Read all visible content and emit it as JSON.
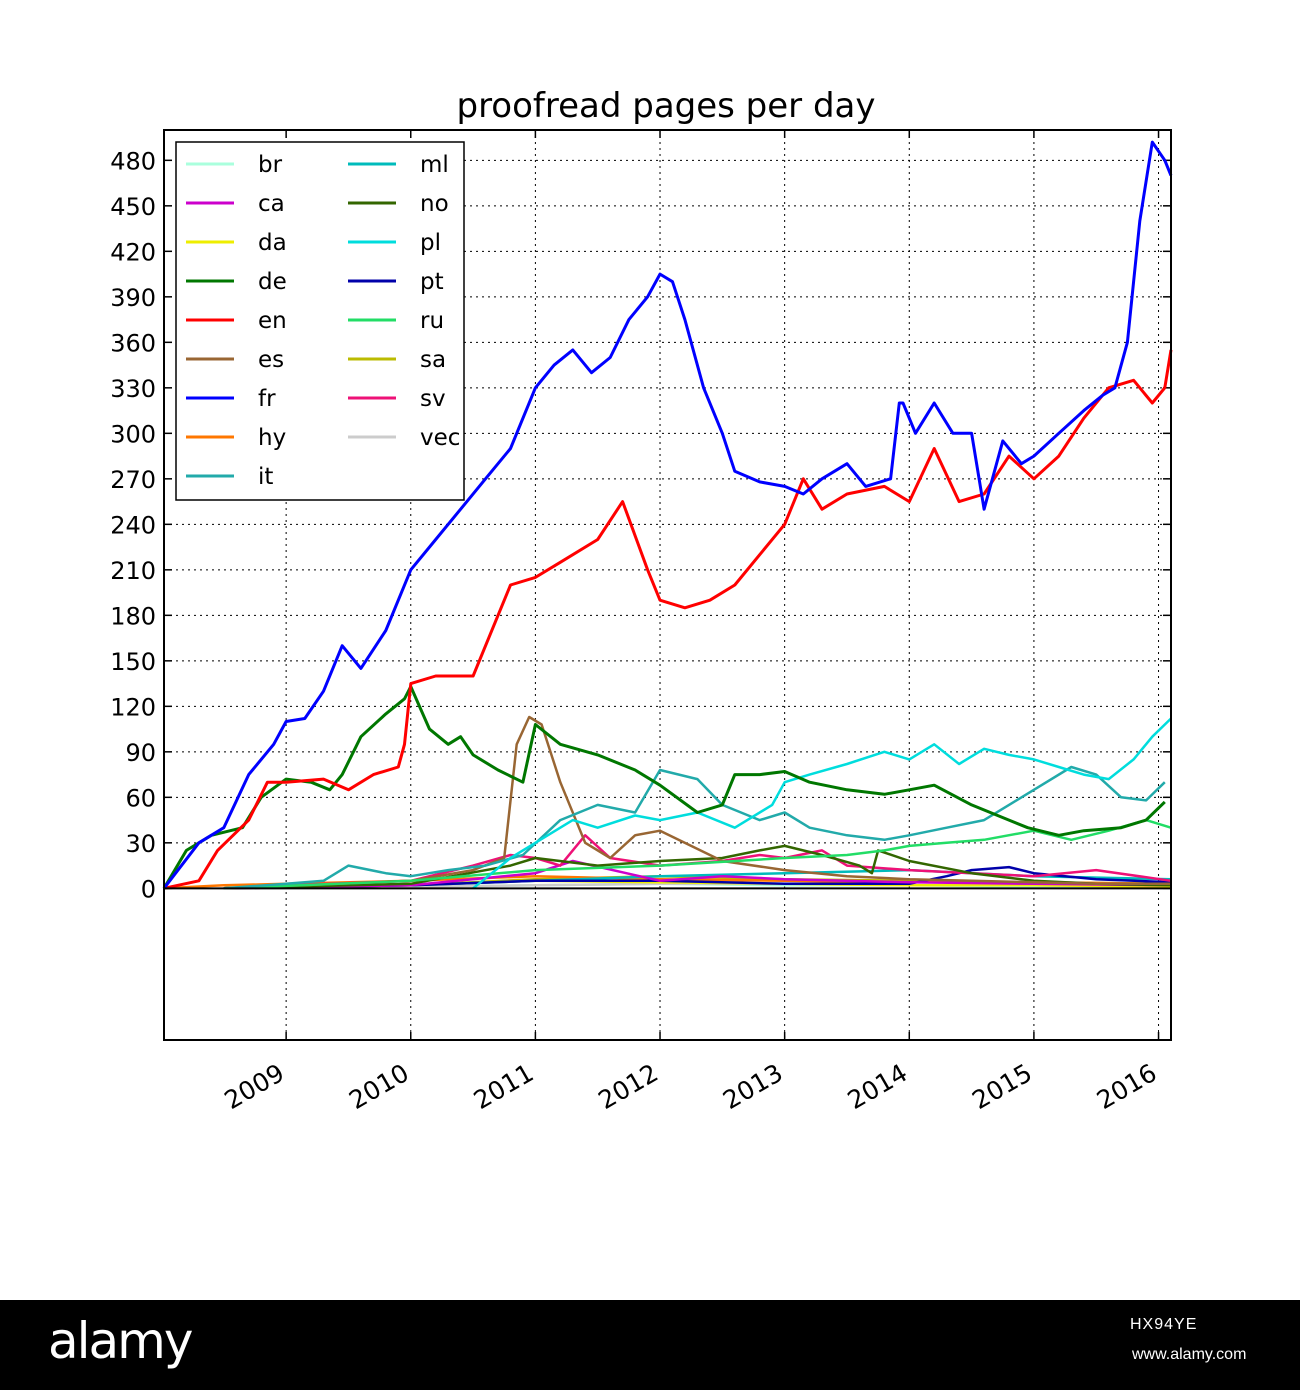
{
  "chart_data": {
    "type": "line",
    "title": "proofread pages per day",
    "xlabel": "",
    "ylabel": "",
    "xlim": [
      2008.02,
      2016.1
    ],
    "ylim": [
      -100,
      500
    ],
    "grid": true,
    "legend_position": "top-left",
    "y_ticks": [
      0,
      30,
      60,
      90,
      120,
      150,
      180,
      210,
      240,
      270,
      300,
      330,
      360,
      390,
      420,
      450,
      480
    ],
    "x_ticks": [
      2009,
      2010,
      2011,
      2012,
      2013,
      2014,
      2015,
      2016
    ],
    "x_tick_labels": [
      "2009",
      "2010",
      "2011",
      "2012",
      "2013",
      "2014",
      "2015",
      "2016"
    ],
    "series": [
      {
        "name": "br",
        "color": "#aaffdd",
        "x": [
          2008.5,
          2010.0,
          2011.0,
          2012.0,
          2013.0,
          2014.0,
          2015.0,
          2016.1
        ],
        "y": [
          0,
          1,
          2,
          3,
          2,
          2,
          1,
          1
        ]
      },
      {
        "name": "ca",
        "color": "#cc00cc",
        "x": [
          2008.5,
          2010.0,
          2011.0,
          2011.3,
          2012.0,
          2012.5,
          2013.0,
          2014.0,
          2015.0,
          2016.1
        ],
        "y": [
          0,
          2,
          10,
          18,
          5,
          8,
          6,
          4,
          3,
          2
        ]
      },
      {
        "name": "da",
        "color": "#eeee00",
        "x": [
          2008.5,
          2010.0,
          2011.0,
          2012.0,
          2013.0,
          2014.0,
          2015.0,
          2016.1
        ],
        "y": [
          0,
          2,
          5,
          4,
          3,
          2,
          2,
          1
        ]
      },
      {
        "name": "de",
        "color": "#007700",
        "x": [
          2008.02,
          2008.2,
          2008.4,
          2008.65,
          2008.8,
          2009.0,
          2009.2,
          2009.35,
          2009.45,
          2009.6,
          2009.8,
          2009.95,
          2010.0,
          2010.15,
          2010.3,
          2010.4,
          2010.5,
          2010.7,
          2010.9,
          2011.0,
          2011.2,
          2011.5,
          2011.8,
          2012.0,
          2012.3,
          2012.5,
          2012.6,
          2012.8,
          2013.0,
          2013.2,
          2013.5,
          2013.8,
          2014.0,
          2014.2,
          2014.5,
          2014.8,
          2014.95,
          2015.2,
          2015.4,
          2015.7,
          2015.9,
          2016.05
        ],
        "y": [
          0,
          25,
          35,
          40,
          60,
          72,
          70,
          65,
          75,
          100,
          115,
          125,
          133,
          105,
          95,
          100,
          88,
          78,
          70,
          108,
          95,
          88,
          78,
          68,
          50,
          55,
          75,
          75,
          77,
          70,
          65,
          62,
          65,
          68,
          55,
          45,
          40,
          35,
          38,
          40,
          45,
          57
        ]
      },
      {
        "name": "en",
        "color": "#ff0000",
        "x": [
          2008.02,
          2008.3,
          2008.45,
          2008.7,
          2008.85,
          2009.0,
          2009.3,
          2009.5,
          2009.7,
          2009.9,
          2009.95,
          2010.0,
          2010.2,
          2010.5,
          2010.8,
          2011.0,
          2011.2,
          2011.5,
          2011.7,
          2011.9,
          2012.0,
          2012.2,
          2012.4,
          2012.6,
          2012.8,
          2013.0,
          2013.15,
          2013.3,
          2013.5,
          2013.8,
          2014.0,
          2014.2,
          2014.4,
          2014.6,
          2014.8,
          2015.0,
          2015.2,
          2015.4,
          2015.6,
          2015.8,
          2015.95,
          2016.05,
          2016.1
        ],
        "y": [
          0,
          5,
          25,
          45,
          70,
          70,
          72,
          65,
          75,
          80,
          95,
          135,
          140,
          140,
          200,
          205,
          215,
          230,
          255,
          210,
          190,
          185,
          190,
          200,
          220,
          240,
          270,
          250,
          260,
          265,
          255,
          290,
          255,
          260,
          285,
          270,
          285,
          310,
          330,
          335,
          320,
          330,
          355
        ]
      },
      {
        "name": "es",
        "color": "#996633",
        "x": [
          2008.5,
          2010.0,
          2010.5,
          2010.75,
          2010.85,
          2010.95,
          2011.05,
          2011.2,
          2011.4,
          2011.6,
          2011.8,
          2012.0,
          2012.5,
          2013.0,
          2013.5,
          2014.0,
          2014.5,
          2015.0,
          2015.5,
          2016.1
        ],
        "y": [
          0,
          5,
          12,
          20,
          95,
          113,
          108,
          70,
          30,
          20,
          35,
          38,
          18,
          12,
          8,
          6,
          5,
          4,
          3,
          3
        ]
      },
      {
        "name": "fr",
        "color": "#0000ff",
        "x": [
          2008.02,
          2008.3,
          2008.5,
          2008.7,
          2008.9,
          2009.0,
          2009.15,
          2009.3,
          2009.45,
          2009.6,
          2009.8,
          2010.0,
          2010.2,
          2010.4,
          2010.6,
          2010.8,
          2011.0,
          2011.15,
          2011.3,
          2011.45,
          2011.6,
          2011.75,
          2011.9,
          2012.0,
          2012.1,
          2012.2,
          2012.35,
          2012.5,
          2012.6,
          2012.8,
          2013.0,
          2013.15,
          2013.3,
          2013.5,
          2013.65,
          2013.85,
          2013.92,
          2013.95,
          2014.05,
          2014.2,
          2014.35,
          2014.5,
          2014.6,
          2014.75,
          2014.9,
          2015.0,
          2015.2,
          2015.4,
          2015.55,
          2015.65,
          2015.75,
          2015.85,
          2015.95,
          2016.05,
          2016.1
        ],
        "y": [
          0,
          30,
          40,
          75,
          95,
          110,
          112,
          130,
          160,
          145,
          170,
          210,
          230,
          250,
          270,
          290,
          330,
          345,
          355,
          340,
          350,
          375,
          390,
          405,
          400,
          375,
          330,
          300,
          275,
          268,
          265,
          260,
          270,
          280,
          265,
          270,
          320,
          320,
          300,
          320,
          300,
          300,
          250,
          295,
          280,
          285,
          300,
          315,
          325,
          330,
          360,
          440,
          492,
          480,
          470
        ]
      },
      {
        "name": "hy",
        "color": "#ff7700",
        "x": [
          2008.02,
          2008.5,
          2009.0,
          2010.0,
          2011.0,
          2012.0,
          2013.0,
          2014.0,
          2015.0,
          2016.1
        ],
        "y": [
          0,
          2,
          3,
          5,
          8,
          6,
          5,
          4,
          4,
          3
        ]
      },
      {
        "name": "it",
        "color": "#22aaaa",
        "x": [
          2008.5,
          2009.0,
          2009.3,
          2009.5,
          2009.8,
          2010.0,
          2010.3,
          2010.6,
          2010.9,
          2011.2,
          2011.5,
          2011.8,
          2012.0,
          2012.3,
          2012.5,
          2012.8,
          2013.0,
          2013.2,
          2013.5,
          2013.8,
          2014.0,
          2014.3,
          2014.6,
          2014.8,
          2015.0,
          2015.3,
          2015.5,
          2015.7,
          2015.9,
          2016.05
        ],
        "y": [
          0,
          3,
          5,
          15,
          10,
          8,
          12,
          15,
          22,
          45,
          55,
          50,
          78,
          72,
          55,
          45,
          50,
          40,
          35,
          32,
          35,
          40,
          45,
          55,
          65,
          80,
          75,
          60,
          58,
          70
        ]
      },
      {
        "name": "ml",
        "color": "#00bbbb",
        "x": [
          2008.5,
          2010.0,
          2011.0,
          2012.0,
          2013.0,
          2014.0,
          2015.0,
          2016.1
        ],
        "y": [
          0,
          2,
          5,
          8,
          10,
          12,
          8,
          6
        ]
      },
      {
        "name": "no",
        "color": "#336600",
        "x": [
          2008.5,
          2010.0,
          2010.8,
          2011.0,
          2011.5,
          2012.0,
          2012.5,
          2012.8,
          2013.0,
          2013.3,
          2013.6,
          2013.7,
          2013.75,
          2014.0,
          2014.5,
          2015.0,
          2015.5,
          2016.1
        ],
        "y": [
          0,
          3,
          15,
          20,
          15,
          18,
          20,
          25,
          28,
          22,
          15,
          10,
          25,
          18,
          10,
          5,
          3,
          2
        ]
      },
      {
        "name": "pl",
        "color": "#00dddd",
        "x": [
          2010.5,
          2010.8,
          2011.0,
          2011.3,
          2011.5,
          2011.8,
          2012.0,
          2012.3,
          2012.6,
          2012.9,
          2013.0,
          2013.2,
          2013.5,
          2013.8,
          2014.0,
          2014.2,
          2014.4,
          2014.6,
          2014.8,
          2015.0,
          2015.2,
          2015.4,
          2015.6,
          2015.8,
          2015.95,
          2016.1
        ],
        "y": [
          0,
          20,
          30,
          45,
          40,
          48,
          45,
          50,
          40,
          55,
          70,
          75,
          82,
          90,
          85,
          95,
          82,
          92,
          88,
          85,
          80,
          75,
          72,
          85,
          100,
          112
        ]
      },
      {
        "name": "pt",
        "color": "#0000aa",
        "x": [
          2008.5,
          2010.0,
          2011.0,
          2012.0,
          2013.0,
          2014.0,
          2014.3,
          2014.5,
          2014.8,
          2015.0,
          2015.5,
          2016.1
        ],
        "y": [
          0,
          2,
          5,
          5,
          3,
          3,
          8,
          12,
          14,
          10,
          6,
          4
        ]
      },
      {
        "name": "ru",
        "color": "#22dd66",
        "x": [
          2008.5,
          2010.0,
          2011.0,
          2012.0,
          2013.0,
          2013.5,
          2013.8,
          2014.0,
          2014.3,
          2014.6,
          2015.0,
          2015.3,
          2015.6,
          2015.9,
          2016.1
        ],
        "y": [
          0,
          5,
          12,
          15,
          20,
          22,
          25,
          28,
          30,
          32,
          38,
          32,
          38,
          45,
          40
        ]
      },
      {
        "name": "sa",
        "color": "#bbbb00",
        "x": [
          2008.5,
          2010.0,
          2011.0,
          2012.0,
          2013.0,
          2014.0,
          2015.0,
          2016.1
        ],
        "y": [
          0,
          2,
          6,
          8,
          6,
          5,
          4,
          3
        ]
      },
      {
        "name": "sv",
        "color": "#ee1177",
        "x": [
          2008.5,
          2009.0,
          2010.0,
          2010.5,
          2010.8,
          2011.0,
          2011.2,
          2011.4,
          2011.6,
          2012.0,
          2012.5,
          2012.8,
          2013.0,
          2013.3,
          2013.5,
          2014.0,
          2014.5,
          2015.0,
          2015.5,
          2016.1
        ],
        "y": [
          0,
          2,
          5,
          15,
          22,
          20,
          15,
          35,
          20,
          15,
          18,
          22,
          20,
          25,
          15,
          12,
          10,
          8,
          12,
          5
        ]
      },
      {
        "name": "vec",
        "color": "#cccccc",
        "x": [
          2008.5,
          2010.0,
          2011.0,
          2012.0,
          2013.0,
          2014.0,
          2015.0,
          2016.1
        ],
        "y": [
          0,
          1,
          2,
          3,
          3,
          2,
          2,
          1
        ]
      }
    ]
  },
  "footer": {
    "brand": "alamy",
    "image_code": "HX94YE",
    "url": "www.alamy.com"
  }
}
